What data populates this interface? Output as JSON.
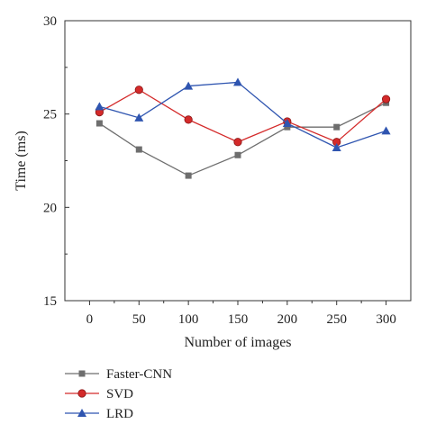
{
  "chart_data": {
    "type": "line",
    "title": "",
    "xlabel": "Number of images",
    "ylabel": "Time (ms)",
    "xlim": [
      -25,
      325
    ],
    "ylim": [
      15,
      30
    ],
    "x_ticks": [
      0,
      50,
      100,
      150,
      200,
      250,
      300
    ],
    "y_ticks": [
      15,
      20,
      25,
      30
    ],
    "x_tick_labels": [
      "0",
      "50",
      "100",
      "150",
      "200",
      "250",
      "300"
    ],
    "y_tick_labels": [
      "15",
      "20",
      "25",
      "30"
    ],
    "grid": false,
    "legend_position": "bottom-left",
    "x": [
      10,
      50,
      100,
      150,
      200,
      250,
      300
    ],
    "series": [
      {
        "name": "Faster-CNN",
        "marker": "square",
        "color": "#6e6e6e",
        "values": [
          24.5,
          23.1,
          21.7,
          22.8,
          24.3,
          24.3,
          25.6
        ]
      },
      {
        "name": "SVD",
        "marker": "circle",
        "color": "#d42a2a",
        "values": [
          25.1,
          26.3,
          24.7,
          23.5,
          24.6,
          23.5,
          25.8
        ]
      },
      {
        "name": "LRD",
        "marker": "triangle",
        "color": "#2f55b0",
        "values": [
          25.4,
          24.8,
          26.5,
          26.7,
          24.5,
          23.2,
          24.1
        ]
      }
    ]
  }
}
